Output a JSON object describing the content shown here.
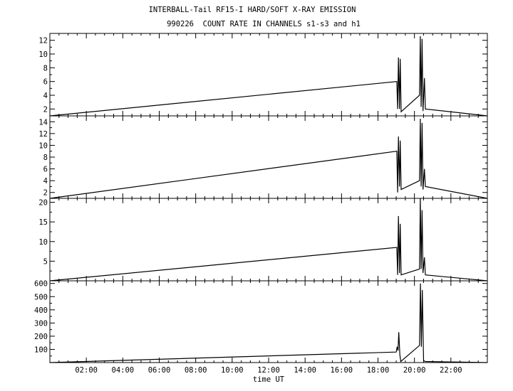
{
  "chart_data": {
    "type": "line",
    "title": "INTERBALL-Tail RF15-I HARD/SOFT X-RAY EMISSION",
    "subtitle": "990226  COUNT RATE IN CHANNELS s1-s3 and h1",
    "xlabel": "time UT",
    "x_tick_labels": [
      "02:00",
      "04:00",
      "06:00",
      "08:00",
      "10:00",
      "12:00",
      "14:00",
      "16:00",
      "18:00",
      "20:00",
      "22:00"
    ],
    "x_tick_hours": [
      2,
      4,
      6,
      8,
      10,
      12,
      14,
      16,
      18,
      20,
      22
    ],
    "xlim": [
      0,
      24
    ],
    "panels": [
      {
        "ylim": [
          1,
          13
        ],
        "yticks": [
          2,
          4,
          6,
          8,
          10,
          12
        ],
        "y_tick_labels": [
          "2",
          "4",
          "6",
          "8",
          "10",
          "12"
        ],
        "bursts": [
          {
            "t": 19.03,
            "y": 6
          },
          {
            "t": 19.08,
            "y": 2
          },
          {
            "t": 19.12,
            "y": 9.5
          },
          {
            "t": 19.18,
            "y": 2
          },
          {
            "t": 19.22,
            "y": 9.3
          },
          {
            "t": 19.27,
            "y": 1.6
          },
          {
            "t": 20.28,
            "y": 4
          },
          {
            "t": 20.32,
            "y": 12.6
          },
          {
            "t": 20.37,
            "y": 2.3
          },
          {
            "t": 20.42,
            "y": 12.2
          },
          {
            "t": 20.47,
            "y": 1.7
          },
          {
            "t": 20.55,
            "y": 6.5
          },
          {
            "t": 20.6,
            "y": 2
          }
        ]
      },
      {
        "ylim": [
          1,
          15
        ],
        "yticks": [
          2,
          4,
          6,
          8,
          10,
          12,
          14
        ],
        "y_tick_labels": [
          "2",
          "4",
          "6",
          "8",
          "10",
          "12",
          "14"
        ],
        "bursts": [
          {
            "t": 19.03,
            "y": 9
          },
          {
            "t": 19.08,
            "y": 2
          },
          {
            "t": 19.12,
            "y": 11.5
          },
          {
            "t": 19.18,
            "y": 3
          },
          {
            "t": 19.22,
            "y": 10.8
          },
          {
            "t": 19.27,
            "y": 2.5
          },
          {
            "t": 20.28,
            "y": 4
          },
          {
            "t": 20.32,
            "y": 14.5
          },
          {
            "t": 20.37,
            "y": 3
          },
          {
            "t": 20.42,
            "y": 13.8
          },
          {
            "t": 20.47,
            "y": 2.5
          },
          {
            "t": 20.55,
            "y": 6
          },
          {
            "t": 20.6,
            "y": 3
          }
        ]
      },
      {
        "ylim": [
          0,
          21
        ],
        "yticks": [
          5,
          10,
          15,
          20
        ],
        "y_tick_labels": [
          "5",
          "10",
          "15",
          "20"
        ],
        "bursts": [
          {
            "t": 19.03,
            "y": 8.5
          },
          {
            "t": 19.08,
            "y": 1.5
          },
          {
            "t": 19.12,
            "y": 16.5
          },
          {
            "t": 19.18,
            "y": 2
          },
          {
            "t": 19.22,
            "y": 14.5
          },
          {
            "t": 19.27,
            "y": 1.5
          },
          {
            "t": 20.28,
            "y": 3
          },
          {
            "t": 20.32,
            "y": 21
          },
          {
            "t": 20.37,
            "y": 3
          },
          {
            "t": 20.42,
            "y": 18
          },
          {
            "t": 20.47,
            "y": 2
          },
          {
            "t": 20.55,
            "y": 6
          },
          {
            "t": 20.6,
            "y": 1.5
          }
        ]
      },
      {
        "ylim": [
          0,
          620
        ],
        "yticks": [
          100,
          200,
          300,
          400,
          500,
          600
        ],
        "y_tick_labels": [
          "100",
          "200",
          "300",
          "400",
          "500",
          "600"
        ],
        "bursts": [
          {
            "t": 19.0,
            "y": 80
          },
          {
            "t": 19.05,
            "y": 120
          },
          {
            "t": 19.1,
            "y": 90
          },
          {
            "t": 19.14,
            "y": 230
          },
          {
            "t": 19.2,
            "y": 60
          },
          {
            "t": 19.25,
            "y": 8
          },
          {
            "t": 20.28,
            "y": 130
          },
          {
            "t": 20.33,
            "y": 600
          },
          {
            "t": 20.38,
            "y": 120
          },
          {
            "t": 20.43,
            "y": 550
          },
          {
            "t": 20.5,
            "y": 15
          },
          {
            "t": 20.6,
            "y": 8
          }
        ]
      }
    ]
  }
}
